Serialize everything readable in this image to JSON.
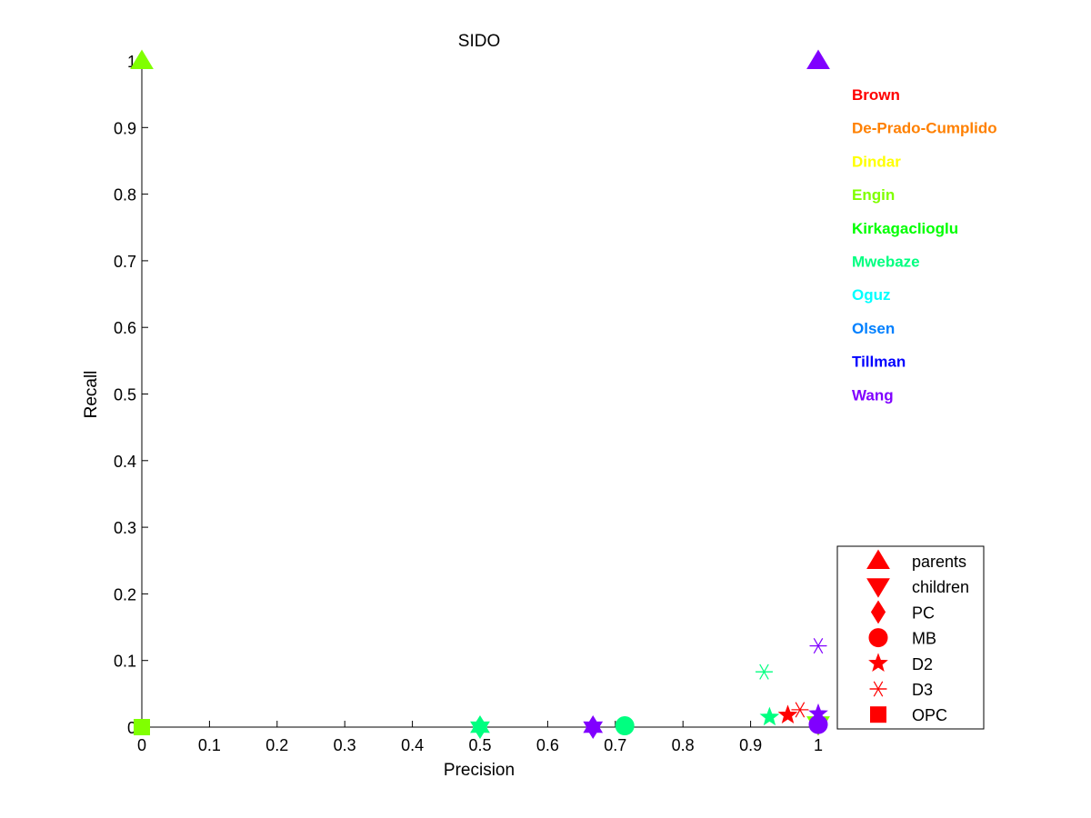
{
  "chart_data": {
    "type": "scatter",
    "title": "SIDO",
    "xlabel": "Precision",
    "ylabel": "Recall",
    "xlim": [
      0,
      1
    ],
    "ylim": [
      0,
      1
    ],
    "xticks": [
      "0",
      "0.1",
      "0.2",
      "0.3",
      "0.4",
      "0.5",
      "0.6",
      "0.7",
      "0.8",
      "0.9",
      "1"
    ],
    "yticks": [
      "0",
      "0.1",
      "0.2",
      "0.3",
      "0.4",
      "0.5",
      "0.6",
      "0.7",
      "0.8",
      "0.9",
      "1"
    ],
    "grid": false,
    "teams": [
      {
        "name": "Brown",
        "color": "#ff0000"
      },
      {
        "name": "De-Prado-Cumplido",
        "color": "#ff8000"
      },
      {
        "name": "Dindar",
        "color": "#ffff00"
      },
      {
        "name": "Engin",
        "color": "#80ff00"
      },
      {
        "name": "Kirkagaclioglu",
        "color": "#00ff00"
      },
      {
        "name": "Mwebaze",
        "color": "#00ff80"
      },
      {
        "name": "Oguz",
        "color": "#00ffff"
      },
      {
        "name": "Olsen",
        "color": "#0080ff"
      },
      {
        "name": "Tillman",
        "color": "#0000ff"
      },
      {
        "name": "Wang",
        "color": "#8000ff"
      }
    ],
    "marker_legend": {
      "placement": "bottom-right",
      "color": "#ff0000",
      "items": [
        {
          "label": "parents",
          "marker": "triangle-up"
        },
        {
          "label": "children",
          "marker": "triangle-down"
        },
        {
          "label": "PC",
          "marker": "diamond"
        },
        {
          "label": "MB",
          "marker": "circle"
        },
        {
          "label": "D2",
          "marker": "star5"
        },
        {
          "label": "D3",
          "marker": "asterisk"
        },
        {
          "label": "OPC",
          "marker": "square"
        }
      ]
    },
    "points": [
      {
        "x": 0.0,
        "y": 1.0,
        "marker": "triangle-up",
        "color": "#80ff00"
      },
      {
        "x": 1.0,
        "y": 1.0,
        "marker": "triangle-up",
        "color": "#8000ff"
      },
      {
        "x": 0.0,
        "y": 0.0,
        "marker": "square",
        "color": "#80ff00"
      },
      {
        "x": 0.5,
        "y": 0.0,
        "marker": "diamond",
        "color": "#00ff80"
      },
      {
        "x": 0.5,
        "y": 0.0,
        "marker": "star6",
        "color": "#00ff80"
      },
      {
        "x": 0.667,
        "y": 0.0,
        "marker": "diamond",
        "color": "#8000ff"
      },
      {
        "x": 0.667,
        "y": 0.0,
        "marker": "star6",
        "color": "#8000ff"
      },
      {
        "x": 0.714,
        "y": 0.002,
        "marker": "circle",
        "color": "#00ff80"
      },
      {
        "x": 0.92,
        "y": 0.083,
        "marker": "asterisk",
        "color": "#00ff80"
      },
      {
        "x": 0.928,
        "y": 0.015,
        "marker": "star5",
        "color": "#00ff80"
      },
      {
        "x": 0.955,
        "y": 0.018,
        "marker": "star5",
        "color": "#ff0000"
      },
      {
        "x": 0.973,
        "y": 0.026,
        "marker": "asterisk",
        "color": "#ff0000"
      },
      {
        "x": 1.0,
        "y": 0.122,
        "marker": "asterisk",
        "color": "#8000ff"
      },
      {
        "x": 1.0,
        "y": 0.004,
        "marker": "triangle-down",
        "color": "#80ff00"
      },
      {
        "x": 1.0,
        "y": 0.02,
        "marker": "star5",
        "color": "#8000ff"
      },
      {
        "x": 1.0,
        "y": 0.004,
        "marker": "circle",
        "color": "#8000ff"
      }
    ]
  }
}
